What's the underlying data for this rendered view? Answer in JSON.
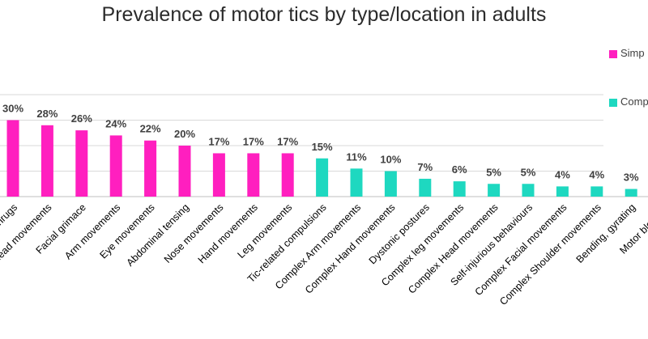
{
  "chart_data": {
    "type": "bar",
    "title": "Prevalence of motor tics by type/location in adults",
    "xlabel": "",
    "ylabel": "",
    "ylim": [
      0,
      45
    ],
    "grid": true,
    "legend_position": "right",
    "series": [
      {
        "name": "Simp",
        "color": "#ff1fbf"
      },
      {
        "name": "Comp",
        "color": "#1ed8c0"
      }
    ],
    "categories": [
      "Shoulder shrugs",
      "Head movements",
      "Facial grimace",
      "Arm movements",
      "Eye movements",
      "Abdominal tensing",
      "Nose movements",
      "Hand movements",
      "Leg movements",
      "Tic-related compulsions",
      "Complex  Arm movements",
      "Complex  Hand movements",
      "Dystonic postures",
      "Complex leg movements",
      "Complex  Head movements",
      "Self-injurious behaviours",
      "Complex  Facial movements",
      "Complex  Shoulder movements",
      "Bending, gyrating",
      "Motor blocking"
    ],
    "values": [
      30,
      28,
      26,
      24,
      22,
      20,
      17,
      17,
      17,
      15,
      11,
      10,
      7,
      6,
      5,
      5,
      4,
      4,
      3,
      2
    ],
    "data_labels": [
      "30%",
      "28%",
      "26%",
      "24%",
      "22%",
      "20%",
      "17%",
      "17%",
      "17%",
      "15%",
      "11%",
      "10%",
      "7%",
      "6%",
      "5%",
      "5%",
      "4%",
      "4%",
      "3%",
      ""
    ],
    "series_index": [
      0,
      0,
      0,
      0,
      0,
      0,
      0,
      0,
      0,
      1,
      1,
      1,
      1,
      1,
      1,
      1,
      1,
      1,
      1,
      1
    ]
  }
}
